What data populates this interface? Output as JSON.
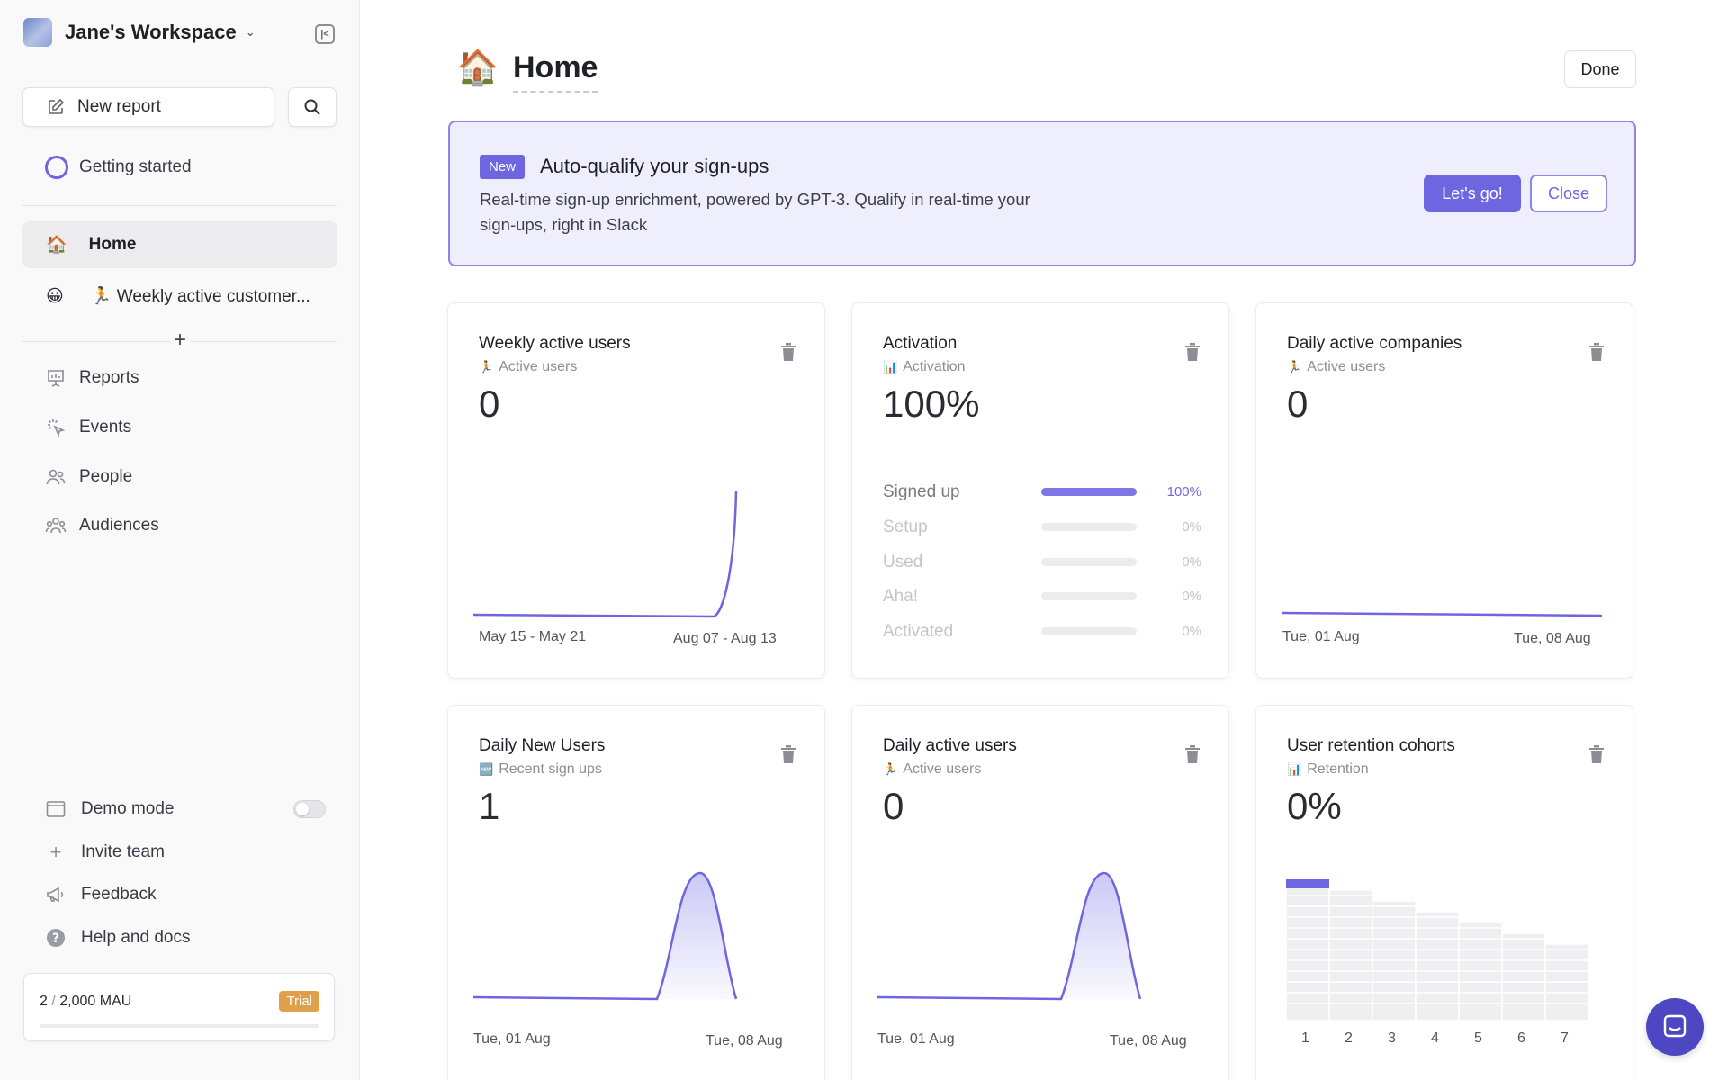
{
  "sidebar": {
    "workspace_name": "Jane's Workspace",
    "new_report_label": "New report",
    "getting_started_label": "Getting started",
    "pinned": [
      {
        "emoji": "🏠",
        "label": "Home",
        "active": true
      },
      {
        "emoji": "😀",
        "label": "🏃 Weekly active customer..."
      }
    ],
    "nav": [
      {
        "label": "Reports",
        "icon": "presentation-chart-icon"
      },
      {
        "label": "Events",
        "icon": "cursor-click-icon"
      },
      {
        "label": "People",
        "icon": "people-icon"
      },
      {
        "label": "Audiences",
        "icon": "audiences-icon"
      }
    ],
    "footer": [
      {
        "label": "Demo mode",
        "icon": "window-icon"
      },
      {
        "label": "Invite team",
        "icon": "plus-icon"
      },
      {
        "label": "Feedback",
        "icon": "megaphone-icon"
      },
      {
        "label": "Help and docs",
        "icon": "help-icon"
      }
    ],
    "demo_mode_on": false,
    "mau": {
      "used": "2",
      "limit": "2,000 MAU",
      "badge": "Trial",
      "fraction": 0.001
    }
  },
  "page": {
    "emoji": "🏠",
    "title": "Home",
    "done_label": "Done"
  },
  "banner": {
    "badge": "New",
    "title": "Auto-qualify your sign-ups",
    "description": "Real-time sign-up enrichment, powered by GPT-3. Qualify in real-time your sign-ups, right in Slack",
    "primary_label": "Let's go!",
    "secondary_label": "Close"
  },
  "cards": {
    "weekly_active_users": {
      "title": "Weekly active users",
      "sub_emoji": "🏃",
      "sub": "Active users",
      "value": "0",
      "x_start": "May 15 - May 21",
      "x_end": "Aug 07 - Aug 13"
    },
    "activation": {
      "title": "Activation",
      "sub_emoji": "📊",
      "sub": "Activation",
      "value": "100%",
      "steps": [
        {
          "label": "Signed up",
          "pct_label": "100%",
          "pct": 1.0
        },
        {
          "label": "Setup",
          "pct_label": "0%",
          "pct": 0
        },
        {
          "label": "Used",
          "pct_label": "0%",
          "pct": 0
        },
        {
          "label": "Aha!",
          "pct_label": "0%",
          "pct": 0
        },
        {
          "label": "Activated",
          "pct_label": "0%",
          "pct": 0
        }
      ]
    },
    "daily_active_companies": {
      "title": "Daily active companies",
      "sub_emoji": "🏃",
      "sub": "Active users",
      "value": "0",
      "x_start": "Tue, 01 Aug",
      "x_end": "Tue, 08 Aug"
    },
    "daily_new_users": {
      "title": "Daily New Users",
      "sub_emoji": "🆕",
      "sub": "Recent sign ups",
      "value": "1",
      "x_start": "Tue, 01 Aug",
      "x_end": "Tue, 08 Aug"
    },
    "daily_active_users": {
      "title": "Daily active users",
      "sub_emoji": "🏃",
      "sub": "Active users",
      "value": "0",
      "x_start": "Tue, 01 Aug",
      "x_end": "Tue, 08 Aug"
    },
    "user_retention": {
      "title": "User retention cohorts",
      "sub_emoji": "📊",
      "sub": "Retention",
      "value": "0%",
      "x_ticks": [
        "1",
        "2",
        "3",
        "4",
        "5",
        "6",
        "7"
      ]
    }
  },
  "colors": {
    "accent": "#6e66e0",
    "banner_bg": "#eeeefd",
    "trial": "#e0a04a"
  }
}
